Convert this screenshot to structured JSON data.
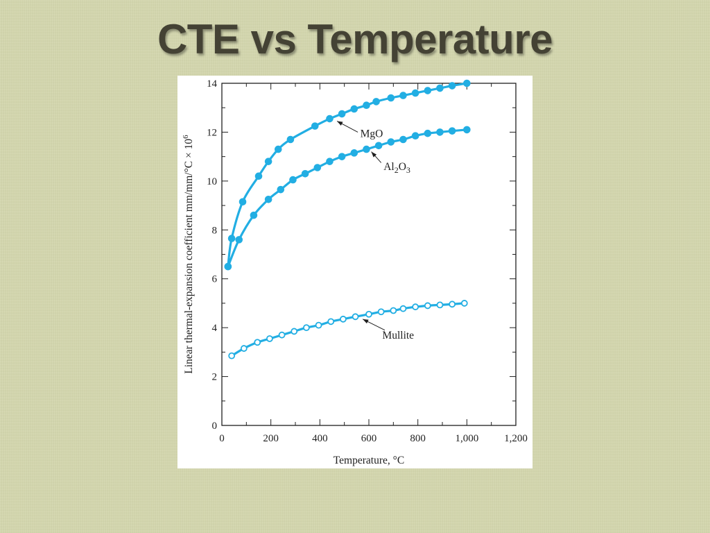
{
  "title": "CTE vs Temperature",
  "colors": {
    "series": "#22aee3",
    "axis": "#1e1e1e",
    "background": "#d3d6ad"
  },
  "chart_data": {
    "type": "line",
    "title": "",
    "xlabel": "Temperature, °C",
    "ylabel": "Linear thermal-expansion coefficient mm/mm/°C × 10^6",
    "ylabel_main": "Linear thermal-expansion coefficient mm/mm/°C × 10",
    "ylabel_sup": "6",
    "xlim": [
      0,
      1200
    ],
    "ylim": [
      0,
      14
    ],
    "x_ticks": [
      0,
      200,
      400,
      600,
      800,
      1000,
      1200
    ],
    "x_tick_labels": [
      "0",
      "200",
      "400",
      "600",
      "800",
      "1,000",
      "1,200"
    ],
    "y_ticks": [
      0,
      2,
      4,
      6,
      8,
      10,
      12,
      14
    ],
    "y_tick_labels": [
      "0",
      "2",
      "4",
      "6",
      "8",
      "10",
      "12",
      "14"
    ],
    "grid": false,
    "series": [
      {
        "name": "MgO",
        "marker": "filled",
        "x": [
          25,
          40,
          85,
          150,
          190,
          230,
          280,
          380,
          440,
          490,
          540,
          590,
          630,
          690,
          740,
          790,
          840,
          890,
          940,
          1000
        ],
        "y": [
          6.5,
          7.65,
          9.15,
          10.2,
          10.8,
          11.3,
          11.7,
          12.25,
          12.55,
          12.75,
          12.95,
          13.1,
          13.25,
          13.4,
          13.5,
          13.6,
          13.7,
          13.8,
          13.9,
          14.0
        ]
      },
      {
        "name": "Al2O3",
        "label_parts": {
          "a": "Al",
          "s1": "2",
          "b": "O",
          "s2": "3"
        },
        "marker": "filled",
        "x": [
          25,
          70,
          130,
          190,
          240,
          290,
          340,
          390,
          440,
          490,
          540,
          590,
          640,
          690,
          740,
          790,
          840,
          890,
          940,
          1000
        ],
        "y": [
          6.5,
          7.6,
          8.6,
          9.25,
          9.65,
          10.05,
          10.3,
          10.55,
          10.8,
          11.0,
          11.15,
          11.3,
          11.45,
          11.6,
          11.7,
          11.85,
          11.95,
          12.0,
          12.05,
          12.1
        ]
      },
      {
        "name": "Mullite",
        "marker": "open",
        "x": [
          40,
          90,
          145,
          195,
          245,
          295,
          345,
          395,
          445,
          495,
          545,
          600,
          650,
          700,
          740,
          790,
          840,
          890,
          940,
          990
        ],
        "y": [
          2.85,
          3.15,
          3.4,
          3.55,
          3.7,
          3.85,
          4.0,
          4.1,
          4.25,
          4.35,
          4.45,
          4.55,
          4.65,
          4.7,
          4.78,
          4.85,
          4.9,
          4.93,
          4.96,
          5.0
        ]
      }
    ]
  }
}
